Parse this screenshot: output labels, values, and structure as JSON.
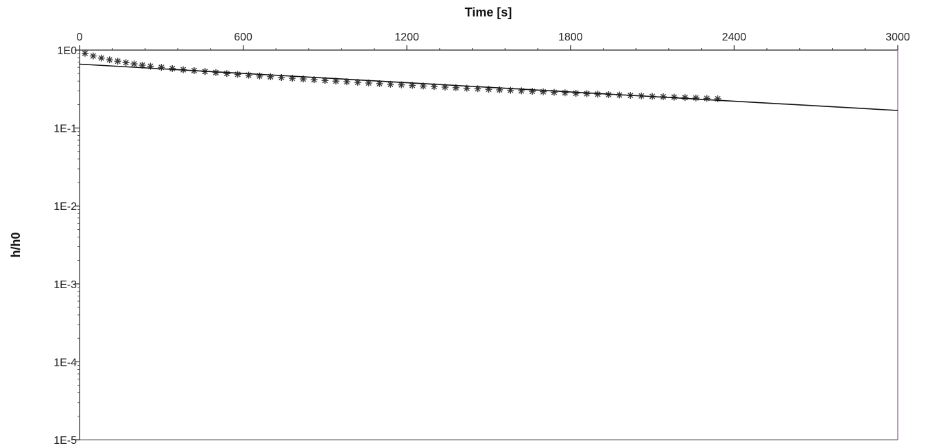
{
  "chart_data": {
    "type": "scatter",
    "title": "",
    "xlabel": "Time [s]",
    "ylabel": "h/h0",
    "xlim": [
      0,
      3000
    ],
    "ylim": [
      1e-05,
      1
    ],
    "yscale": "log",
    "x_axis_position": "top",
    "grid": false,
    "legend": "none",
    "x_ticks": [
      "0",
      "600",
      "1200",
      "1800",
      "2400",
      "3000"
    ],
    "y_ticks": [
      "1E0",
      "1E-1",
      "1E-2",
      "1E-3",
      "1E-4",
      "1E-5"
    ],
    "series": [
      {
        "kind": "markers",
        "marker": "asterisk",
        "x": [
          20,
          50,
          80,
          110,
          140,
          170,
          200,
          230,
          260,
          300,
          340,
          380,
          420,
          460,
          500,
          540,
          580,
          620,
          660,
          700,
          740,
          780,
          820,
          860,
          900,
          940,
          980,
          1020,
          1060,
          1100,
          1140,
          1180,
          1220,
          1260,
          1300,
          1340,
          1380,
          1420,
          1460,
          1500,
          1540,
          1580,
          1620,
          1660,
          1700,
          1740,
          1780,
          1820,
          1860,
          1900,
          1940,
          1980,
          2020,
          2060,
          2100,
          2140,
          2180,
          2220,
          2260,
          2300,
          2340
        ],
        "y": [
          0.91,
          0.84,
          0.79,
          0.75,
          0.72,
          0.69,
          0.665,
          0.64,
          0.62,
          0.6,
          0.58,
          0.56,
          0.545,
          0.53,
          0.515,
          0.5,
          0.488,
          0.476,
          0.465,
          0.455,
          0.445,
          0.435,
          0.426,
          0.417,
          0.408,
          0.4,
          0.392,
          0.385,
          0.378,
          0.371,
          0.364,
          0.358,
          0.352,
          0.346,
          0.34,
          0.335,
          0.329,
          0.324,
          0.319,
          0.314,
          0.309,
          0.305,
          0.3,
          0.296,
          0.292,
          0.287,
          0.283,
          0.279,
          0.276,
          0.272,
          0.268,
          0.265,
          0.262,
          0.258,
          0.255,
          0.252,
          0.249,
          0.246,
          0.243,
          0.24,
          0.237
        ]
      },
      {
        "kind": "line",
        "x": [
          0,
          3000
        ],
        "y": [
          0.66,
          0.168
        ]
      }
    ],
    "colors": {
      "axis": "#222222",
      "frame": "#555555",
      "right_border": "#9a4fa0",
      "left_border": "#9a4fa0",
      "markers": "#333333",
      "fit_line": "#111111"
    }
  }
}
